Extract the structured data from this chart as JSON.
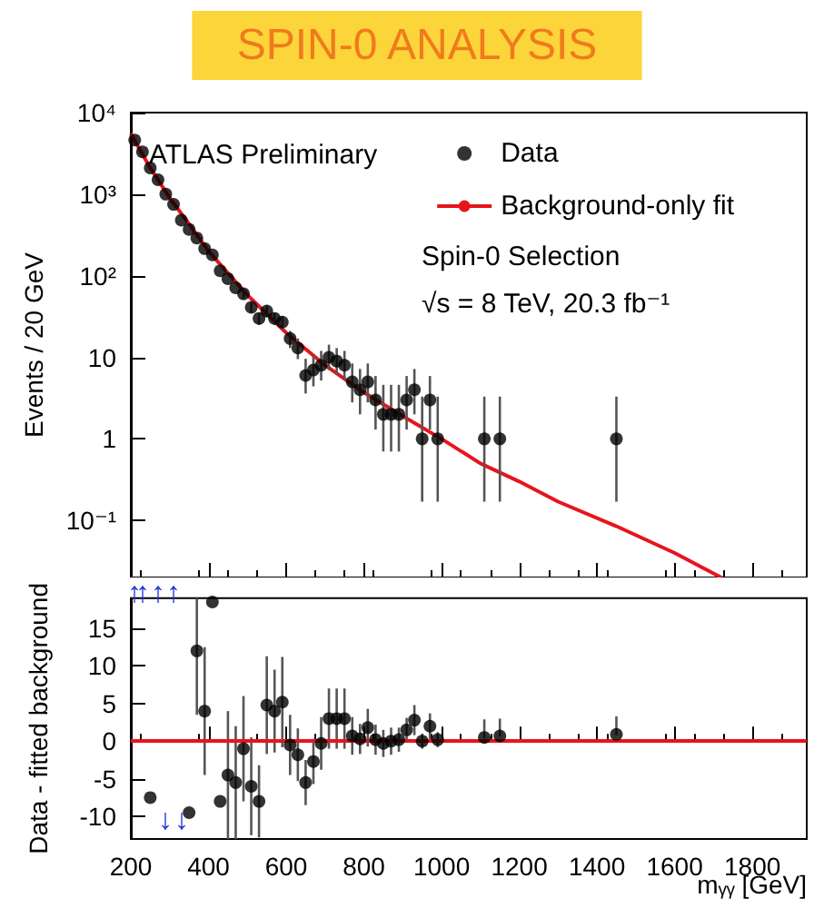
{
  "chart_data": [
    {
      "type": "scatter",
      "title": "SPIN-0 ANALYSIS",
      "ylabel": "Events / 20 GeV",
      "annotations": [
        "ATLAS Preliminary",
        "Spin-0 Selection",
        "√s = 8 TeV, 20.3 fb⁻¹"
      ],
      "series": [
        {
          "name": "Data",
          "color": "#000000",
          "x": [
            210,
            230,
            250,
            270,
            290,
            310,
            330,
            350,
            370,
            390,
            410,
            430,
            450,
            470,
            490,
            510,
            530,
            550,
            570,
            590,
            610,
            630,
            650,
            670,
            690,
            710,
            730,
            750,
            770,
            790,
            810,
            830,
            850,
            870,
            890,
            910,
            930,
            950,
            970,
            990,
            1110,
            1150,
            1450
          ],
          "values": [
            4600,
            3300,
            2100,
            1500,
            1000,
            750,
            480,
            370,
            290,
            215,
            180,
            115,
            92,
            71,
            60,
            41,
            30,
            37,
            30,
            27,
            17,
            13,
            6,
            7,
            8,
            10,
            9,
            8,
            5,
            4,
            5,
            3,
            2,
            2,
            2,
            3,
            4,
            1,
            3,
            1,
            1,
            1,
            1
          ],
          "errors": [
            null,
            null,
            null,
            null,
            null,
            null,
            null,
            null,
            null,
            null,
            null,
            null,
            null,
            null,
            [
              52,
              68
            ],
            [
              35,
              47
            ],
            [
              25,
              35
            ],
            [
              31,
              43
            ],
            [
              25,
              35
            ],
            [
              22,
              32
            ],
            [
              13,
              21
            ],
            [
              9.5,
              17
            ],
            [
              3.6,
              9.6
            ],
            [
              4.4,
              10.8
            ],
            [
              5.2,
              12
            ],
            [
              7,
              14.3
            ],
            [
              6.1,
              13
            ],
            [
              5.2,
              12
            ],
            [
              2.8,
              8.4
            ],
            [
              2,
              7.2
            ],
            [
              2.8,
              8.4
            ],
            [
              1.3,
              5.9
            ],
            [
              0.7,
              4.6
            ],
            [
              0.7,
              4.6
            ],
            [
              0.7,
              4.6
            ],
            [
              1.3,
              5.9
            ],
            [
              2,
              7.2
            ],
            [
              0.17,
              3.3
            ],
            [
              1.3,
              5.9
            ],
            [
              0.17,
              3.3
            ],
            [
              0.17,
              3.3
            ],
            [
              0.17,
              3.3
            ],
            [
              0.17,
              3.3
            ]
          ]
        },
        {
          "name": "Background-only fit",
          "type": "line",
          "color": "#e8141c",
          "marker": "none",
          "x": [
            200,
            250,
            300,
            350,
            400,
            500,
            600,
            700,
            800,
            900,
            1000,
            1100,
            1200,
            1300,
            1450,
            1600,
            1720
          ],
          "values": [
            5500,
            2100,
            900,
            430,
            200,
            58,
            20,
            8,
            3.7,
            1.9,
            1,
            0.5,
            0.3,
            0.17,
            0.085,
            0.04,
            0.02
          ]
        }
      ],
      "xlim": [
        200,
        1940
      ],
      "xticks": [
        200,
        400,
        600,
        800,
        1000,
        1200,
        1400,
        1600,
        1800
      ],
      "ylim": [
        0.02,
        10000
      ],
      "yticks": [
        {
          "value": 0.1,
          "label": "10⁻¹"
        },
        1,
        10,
        {
          "value": 100,
          "label": "10²"
        },
        {
          "value": 1000,
          "label": "10³"
        },
        {
          "value": 10000,
          "label": "10⁴"
        }
      ],
      "log": "y",
      "tick_labels": "y",
      "legend": "top right",
      "marker": "circle",
      "grid": false
    },
    {
      "type": "scatter",
      "ylabel": "Data - fitted background",
      "xlabel": "mᵧᵧ [GeV]",
      "annotations": [
        "↑",
        "↑",
        "↑",
        "↑",
        "↓",
        "↓"
      ],
      "series": [
        {
          "color": "#000000",
          "x": [
            250,
            350,
            370,
            390,
            410,
            430,
            450,
            470,
            490,
            510,
            530,
            550,
            570,
            590,
            610,
            630,
            650,
            670,
            690,
            710,
            730,
            750,
            770,
            790,
            810,
            830,
            850,
            870,
            890,
            910,
            930,
            950,
            970,
            990,
            1110,
            1150,
            1450
          ],
          "values": [
            -7.5,
            -9.5,
            12,
            4,
            18.5,
            -8,
            -4.5,
            -5.5,
            -1,
            -6,
            -8,
            4.8,
            4,
            5.2,
            -0.5,
            -1.8,
            -5.5,
            -2.7,
            -0.3,
            3,
            3,
            3,
            0.7,
            0.3,
            1.8,
            0.2,
            -0.3,
            0,
            0.2,
            1.5,
            2.8,
            0,
            2,
            0.2,
            0.5,
            0.7,
            0.9
          ],
          "errors": [
            null,
            null,
            8.5,
            8.5,
            null,
            null,
            8.5,
            7.5,
            7,
            6.5,
            4.8,
            6.5,
            5.5,
            6,
            4,
            3.5,
            3,
            3,
            3.5,
            4,
            4,
            4,
            2.5,
            2,
            2.5,
            2,
            1.8,
            1.8,
            1.6,
            1.6,
            2,
            1,
            1.7,
            1,
            [
              0.4,
              2.9
            ],
            [
              0.6,
              3
            ],
            [
              0.8,
              3.3
            ]
          ]
        }
      ],
      "ref_lines": [
        {
          "axis": "y",
          "value": 0,
          "color": "#e8141c"
        }
      ],
      "xlim": [
        200,
        1940
      ],
      "xticks": [
        200,
        400,
        600,
        800,
        1000,
        1200,
        1400,
        1600,
        1800
      ],
      "ylim": [
        -13,
        19
      ],
      "yticks": [
        -10,
        -5,
        0,
        5,
        10,
        15
      ],
      "marker": "circle",
      "grid": false,
      "legend": false
    }
  ]
}
